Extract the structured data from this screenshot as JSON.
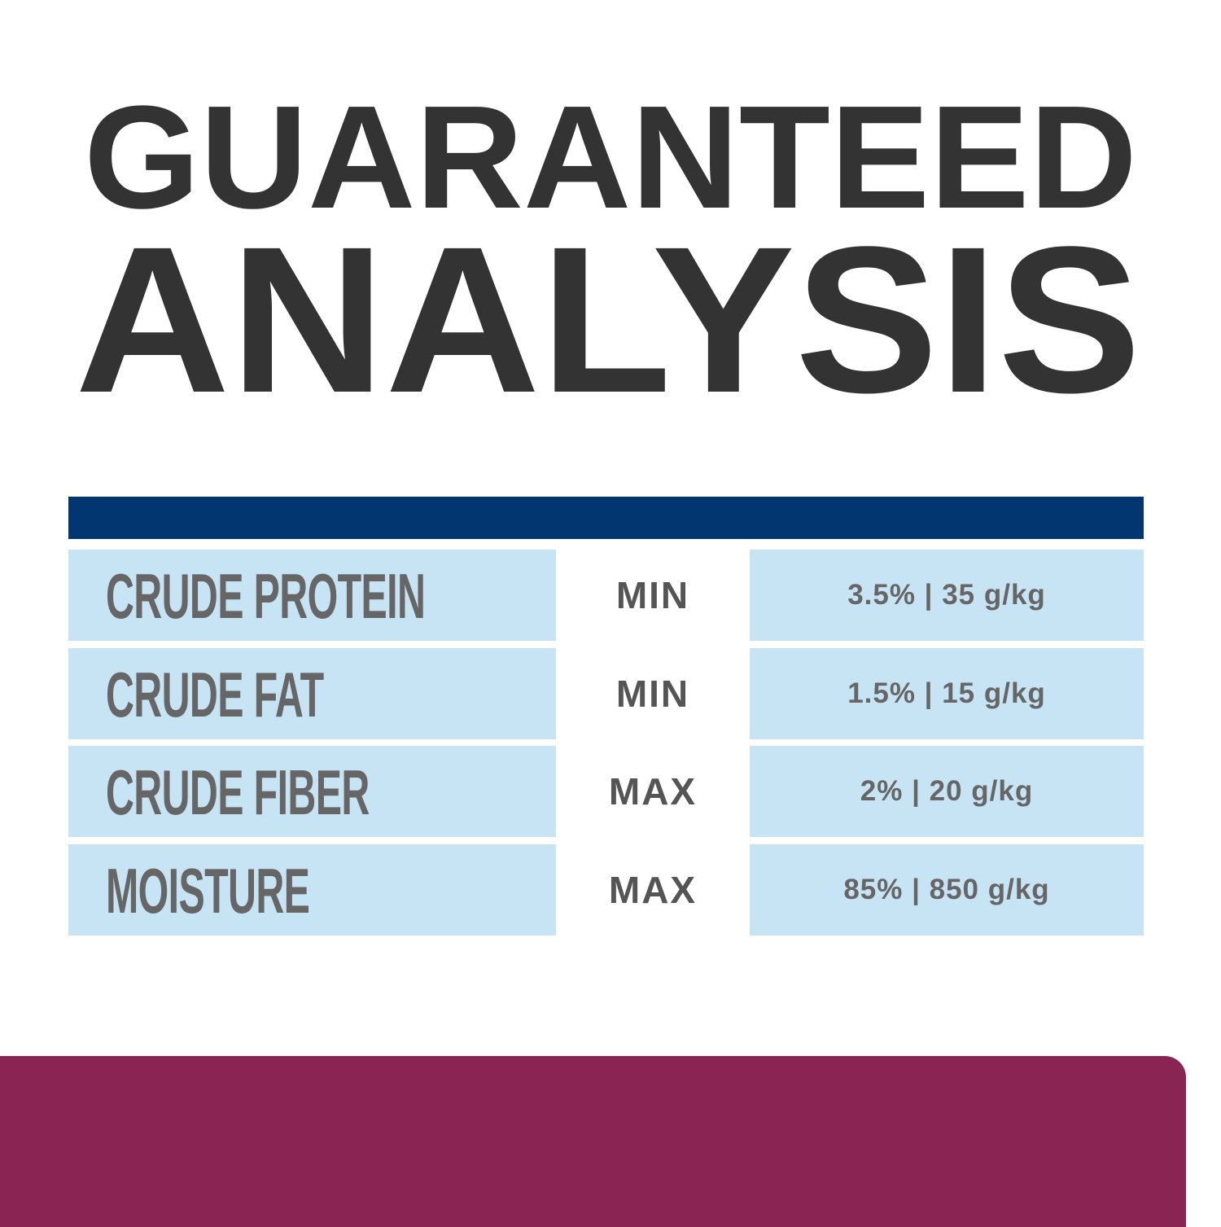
{
  "title": {
    "line1": "GUARANTEED",
    "line2": "ANALYSIS"
  },
  "colors": {
    "title": "#333333",
    "header_bar": "#023670",
    "cell_bg": "#C7E4F4",
    "text": "#666666",
    "bottom_panel": "#8A2453"
  },
  "rows": [
    {
      "label": "CRUDE PROTEIN",
      "limit": "MIN",
      "value": "3.5% | 35 g/kg"
    },
    {
      "label": "CRUDE FAT",
      "limit": "MIN",
      "value": "1.5% | 15 g/kg"
    },
    {
      "label": "CRUDE FIBER",
      "limit": "MAX",
      "value": "2% | 20 g/kg"
    },
    {
      "label": "MOISTURE",
      "limit": "MAX",
      "value": "85% | 850 g/kg"
    }
  ]
}
